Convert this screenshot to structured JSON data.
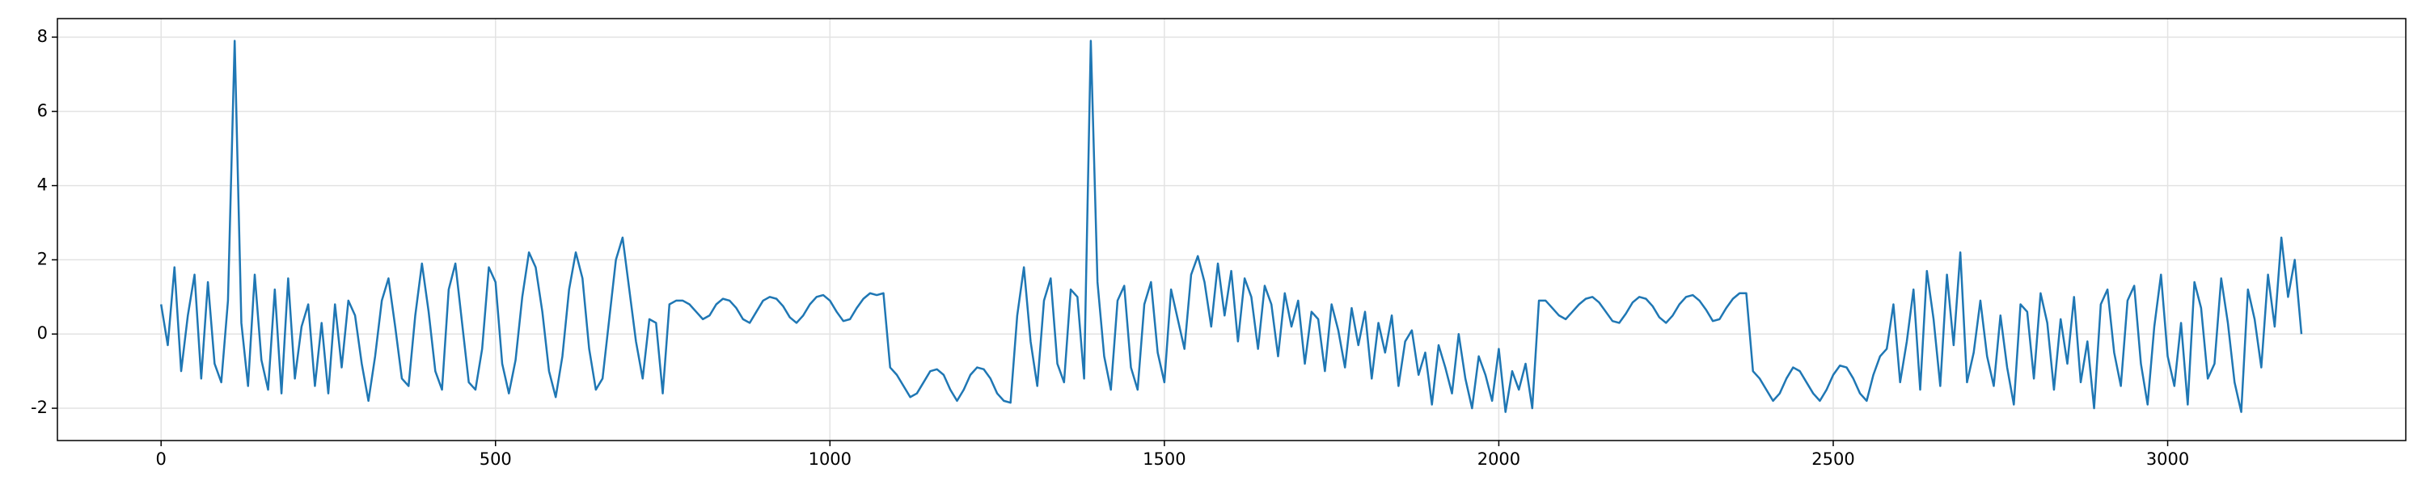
{
  "chart_data": {
    "type": "line",
    "color": "#1f77b4",
    "grid": true,
    "xlim": [
      -155,
      3356
    ],
    "ylim": [
      -2.87,
      8.5
    ],
    "xticks": [
      0,
      500,
      1000,
      1500,
      2000,
      2500,
      3000
    ],
    "yticks": [
      -2,
      0,
      2,
      4,
      6,
      8
    ],
    "x": [
      0,
      10,
      20,
      30,
      40,
      50,
      60,
      70,
      80,
      90,
      100,
      110,
      120,
      130,
      140,
      150,
      160,
      170,
      180,
      190,
      200,
      210,
      220,
      230,
      240,
      250,
      260,
      270,
      280,
      290,
      300,
      310,
      320,
      330,
      340,
      350,
      360,
      370,
      380,
      390,
      400,
      410,
      420,
      430,
      440,
      450,
      460,
      470,
      480,
      490,
      500,
      510,
      520,
      530,
      540,
      550,
      560,
      570,
      580,
      590,
      600,
      610,
      620,
      630,
      640,
      650,
      660,
      670,
      680,
      690,
      700,
      710,
      720,
      730,
      740,
      750,
      760,
      770,
      780,
      790,
      800,
      810,
      820,
      830,
      840,
      850,
      860,
      870,
      880,
      890,
      900,
      910,
      920,
      930,
      940,
      950,
      960,
      970,
      980,
      990,
      1000,
      1010,
      1020,
      1030,
      1040,
      1050,
      1060,
      1070,
      1080,
      1090,
      1100,
      1110,
      1120,
      1130,
      1140,
      1150,
      1160,
      1170,
      1180,
      1190,
      1200,
      1210,
      1220,
      1230,
      1240,
      1250,
      1260,
      1270,
      1280,
      1290,
      1300,
      1310,
      1320,
      1330,
      1340,
      1350,
      1360,
      1370,
      1380,
      1390,
      1400,
      1410,
      1420,
      1430,
      1440,
      1450,
      1460,
      1470,
      1480,
      1490,
      1500,
      1510,
      1520,
      1530,
      1540,
      1550,
      1560,
      1570,
      1580,
      1590,
      1600,
      1610,
      1620,
      1630,
      1640,
      1650,
      1660,
      1670,
      1680,
      1690,
      1700,
      1710,
      1720,
      1730,
      1740,
      1750,
      1760,
      1770,
      1780,
      1790,
      1800,
      1810,
      1820,
      1830,
      1840,
      1850,
      1860,
      1870,
      1880,
      1890,
      1900,
      1910,
      1920,
      1930,
      1940,
      1950,
      1960,
      1970,
      1980,
      1990,
      2000,
      2010,
      2020,
      2030,
      2040,
      2050,
      2060,
      2070,
      2080,
      2090,
      2100,
      2110,
      2120,
      2130,
      2140,
      2150,
      2160,
      2170,
      2180,
      2190,
      2200,
      2210,
      2220,
      2230,
      2240,
      2250,
      2260,
      2270,
      2280,
      2290,
      2300,
      2310,
      2320,
      2330,
      2340,
      2350,
      2360,
      2370,
      2380,
      2390,
      2400,
      2410,
      2420,
      2430,
      2440,
      2450,
      2460,
      2470,
      2480,
      2490,
      2500,
      2510,
      2520,
      2530,
      2540,
      2550,
      2560,
      2570,
      2580,
      2590,
      2600,
      2610,
      2620,
      2630,
      2640,
      2650,
      2660,
      2670,
      2680,
      2690,
      2700,
      2710,
      2720,
      2730,
      2740,
      2750,
      2760,
      2770,
      2780,
      2790,
      2800,
      2810,
      2820,
      2830,
      2840,
      2850,
      2860,
      2870,
      2880,
      2890,
      2900,
      2910,
      2920,
      2930,
      2940,
      2950,
      2960,
      2970,
      2980,
      2990,
      3000,
      3010,
      3020,
      3030,
      3040,
      3050,
      3060,
      3070,
      3080,
      3090,
      3100,
      3110,
      3120,
      3130,
      3140,
      3150,
      3160,
      3170,
      3180,
      3190,
      3200
    ],
    "values": [
      0.8,
      -0.3,
      1.8,
      -1.0,
      0.5,
      1.6,
      -1.2,
      1.4,
      -0.8,
      -1.3,
      0.9,
      7.9,
      0.3,
      -1.4,
      1.6,
      -0.7,
      -1.5,
      1.2,
      -1.6,
      1.5,
      -1.2,
      0.2,
      0.8,
      -1.4,
      0.3,
      -1.6,
      0.8,
      -0.9,
      0.9,
      0.5,
      -0.8,
      -1.8,
      -0.6,
      0.9,
      1.5,
      0.2,
      -1.2,
      -1.4,
      0.5,
      1.9,
      0.6,
      -1.0,
      -1.5,
      1.2,
      1.9,
      0.3,
      -1.3,
      -1.5,
      -0.4,
      1.8,
      1.4,
      -0.8,
      -1.6,
      -0.7,
      1.0,
      2.2,
      1.8,
      0.6,
      -1.0,
      -1.7,
      -0.6,
      1.2,
      2.2,
      1.5,
      -0.4,
      -1.5,
      -1.2,
      0.4,
      2.0,
      2.6,
      1.2,
      -0.2,
      -1.2,
      0.4,
      0.3,
      -1.6,
      0.8,
      0.9,
      0.9,
      0.8,
      0.6,
      0.4,
      0.5,
      0.8,
      0.95,
      0.9,
      0.7,
      0.4,
      0.3,
      0.6,
      0.9,
      1.0,
      0.95,
      0.75,
      0.45,
      0.3,
      0.5,
      0.8,
      1.0,
      1.05,
      0.9,
      0.6,
      0.35,
      0.4,
      0.7,
      0.95,
      1.1,
      1.05,
      1.1,
      -0.9,
      -1.1,
      -1.4,
      -1.7,
      -1.6,
      -1.3,
      -1.0,
      -0.95,
      -1.1,
      -1.5,
      -1.8,
      -1.5,
      -1.1,
      -0.9,
      -0.95,
      -1.2,
      -1.6,
      -1.8,
      -1.85,
      0.5,
      1.8,
      -0.2,
      -1.4,
      0.9,
      1.5,
      -0.8,
      -1.3,
      1.2,
      1.0,
      -1.2,
      7.9,
      1.4,
      -0.6,
      -1.5,
      0.9,
      1.3,
      -0.9,
      -1.5,
      0.8,
      1.4,
      -0.5,
      -1.3,
      1.2,
      0.4,
      -0.4,
      1.6,
      2.1,
      1.4,
      0.2,
      1.9,
      0.5,
      1.7,
      -0.2,
      1.5,
      1.0,
      -0.4,
      1.3,
      0.8,
      -0.6,
      1.1,
      0.2,
      0.9,
      -0.8,
      0.6,
      0.4,
      -1.0,
      0.8,
      0.1,
      -0.9,
      0.7,
      -0.3,
      0.6,
      -1.2,
      0.3,
      -0.5,
      0.5,
      -1.4,
      -0.2,
      0.1,
      -1.1,
      -0.5,
      -1.9,
      -0.3,
      -0.9,
      -1.6,
      0.0,
      -1.2,
      -2.0,
      -0.6,
      -1.1,
      -1.8,
      -0.4,
      -2.1,
      -1.0,
      -1.5,
      -0.8,
      -2.0,
      0.9,
      0.9,
      0.7,
      0.5,
      0.4,
      0.6,
      0.8,
      0.95,
      1.0,
      0.85,
      0.6,
      0.35,
      0.3,
      0.55,
      0.85,
      1.0,
      0.95,
      0.75,
      0.45,
      0.3,
      0.5,
      0.8,
      1.0,
      1.05,
      0.9,
      0.65,
      0.35,
      0.4,
      0.7,
      0.95,
      1.1,
      1.1,
      -1.0,
      -1.2,
      -1.5,
      -1.8,
      -1.6,
      -1.2,
      -0.9,
      -1.0,
      -1.3,
      -1.6,
      -1.8,
      -1.5,
      -1.1,
      -0.85,
      -0.9,
      -1.2,
      -1.6,
      -1.8,
      -1.1,
      -0.6,
      -0.4,
      0.8,
      -1.3,
      -0.2,
      1.2,
      -1.5,
      1.7,
      0.4,
      -1.4,
      1.6,
      -0.3,
      2.2,
      -1.3,
      -0.5,
      0.9,
      -0.6,
      -1.4,
      0.5,
      -0.9,
      -1.9,
      0.8,
      0.6,
      -1.2,
      1.1,
      0.3,
      -1.5,
      0.4,
      -0.8,
      1.0,
      -1.3,
      -0.2,
      -2.0,
      0.8,
      1.2,
      -0.5,
      -1.4,
      0.9,
      1.3,
      -0.8,
      -1.9,
      0.2,
      1.6,
      -0.6,
      -1.4,
      0.3,
      -1.9,
      1.4,
      0.7,
      -1.2,
      -0.8,
      1.5,
      0.3,
      -1.3,
      -2.1,
      1.2,
      0.4,
      -0.9,
      1.6,
      0.2,
      2.6,
      1.0,
      2.0,
      0.0
    ]
  }
}
